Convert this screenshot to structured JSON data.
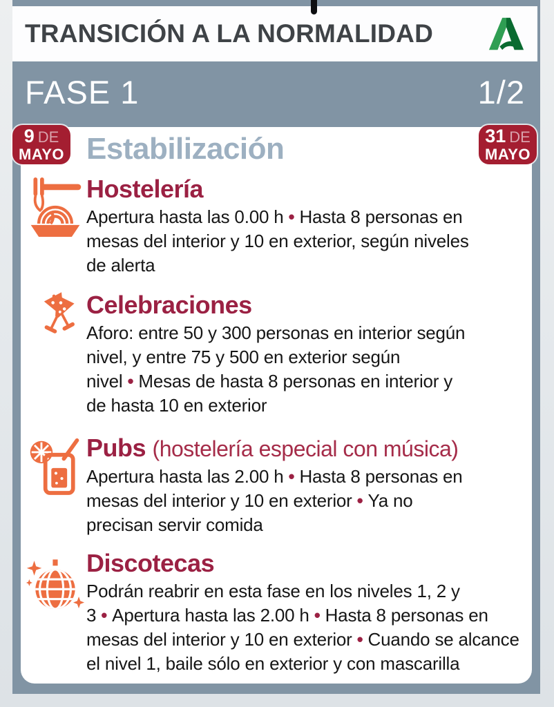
{
  "header": {
    "title": "TRANSICIÓN A LA NORMALIDAD",
    "logo": "junta-de-andalucia-a-logo"
  },
  "phase_bar": {
    "phase": "FASE 1",
    "page_indicator": "1/2"
  },
  "stage": {
    "title": "Estabilización",
    "start_badge": {
      "day": "9",
      "de": "DE",
      "month": "MAYO"
    },
    "end_badge": {
      "day": "31",
      "de": "DE",
      "month": "MAYO"
    }
  },
  "sections": [
    {
      "id": "hosteleria",
      "icon": "fork-noodles-bowl-icon",
      "title": "Hostelería",
      "body_parts": [
        "Apertura hasta las 0.00 h",
        "Hasta 8 personas en mesas del interior y 10 en exterior, según niveles de alerta"
      ]
    },
    {
      "id": "celebraciones",
      "icon": "toasting-glasses-icon",
      "title": "Celebraciones",
      "body_parts": [
        "Aforo: entre 50 y 300 personas en interior según nivel, y entre 75 y 500 en exterior según nivel",
        "Mesas de hasta 8 personas en interior y de hasta 10 en exterior"
      ]
    },
    {
      "id": "pubs",
      "icon": "cocktail-drink-icon",
      "title": "Pubs",
      "subtitle": "(hostelería especial con música)",
      "body_parts": [
        "Apertura hasta las 2.00 h",
        "Hasta 8 personas en mesas del interior y 10 en exterior",
        "Ya no precisan servir comida"
      ]
    },
    {
      "id": "discotecas",
      "icon": "disco-ball-icon",
      "title": "Discotecas",
      "body_parts": [
        "Podrán reabrir en esta fase en los niveles 1, 2 y 3",
        "Apertura hasta las 2.00 h",
        "Hasta 8 personas en mesas del interior y 10 en exterior",
        "Cuando se alcance el nivel 1, baile sólo en exterior y con mascarilla"
      ]
    }
  ],
  "colors": {
    "slate_panel": "#8194a4",
    "heading_maroon": "#9b2143",
    "badge_red": "#a41e31",
    "badge_de_pink": "#d9a3ac",
    "stage_blue": "#9db0c1",
    "icon_orange": "#ed6e41",
    "body_text": "#161616",
    "logo_green_dark": "#0a6b30",
    "logo_green_light": "#2f9e53"
  }
}
